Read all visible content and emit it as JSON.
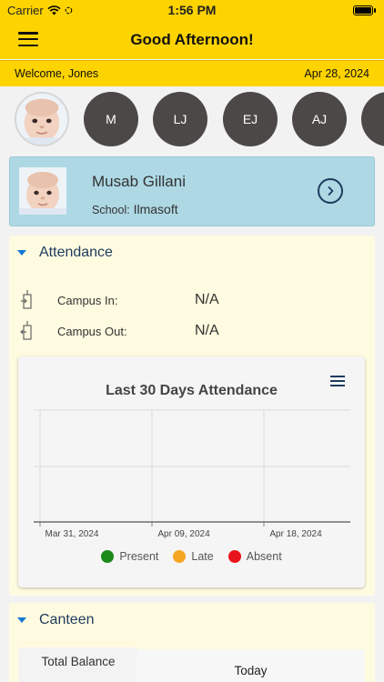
{
  "status_bar": {
    "carrier": "Carrier",
    "time": "1:56 PM"
  },
  "header": {
    "title": "Good Afternoon!"
  },
  "welcome": {
    "text": "Welcome, Jones",
    "date": "Apr 28, 2024"
  },
  "avatars": [
    "M",
    "LJ",
    "EJ",
    "AJ"
  ],
  "student": {
    "name": "Musab Gillani",
    "school_label": "School:",
    "school": "Ilmasoft"
  },
  "attendance": {
    "title": "Attendance",
    "campus_in_label": "Campus In:",
    "campus_in_value": "N/A",
    "campus_out_label": "Campus Out:",
    "campus_out_value": "N/A"
  },
  "chart_data": {
    "type": "line",
    "title": "Last 30 Days Attendance",
    "x_ticks": [
      "Mar 31, 2024",
      "Apr 09, 2024",
      "Apr 18, 2024"
    ],
    "series": [
      {
        "name": "Present",
        "color": "#1a8a1a",
        "values": []
      },
      {
        "name": "Late",
        "color": "#f5a623",
        "values": []
      },
      {
        "name": "Absent",
        "color": "#e8141b",
        "values": []
      }
    ],
    "grid": true,
    "legend": "bottom"
  },
  "canteen": {
    "title": "Canteen",
    "total_balance_label": "Total Balance",
    "today_label": "Today"
  },
  "colors": {
    "header": "#fdd300",
    "card": "#aed8e4",
    "panel": "#fffbe0",
    "accent": "#1d3b5e"
  }
}
